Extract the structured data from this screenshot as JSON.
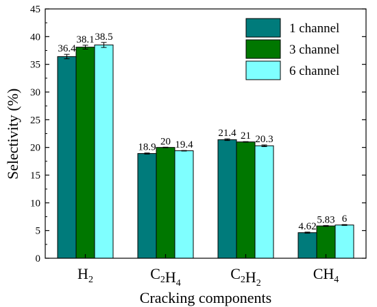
{
  "chart_data": {
    "type": "bar",
    "xlabel": "Cracking components",
    "ylabel": "Selectivity (%)",
    "ylim": [
      0,
      45
    ],
    "yticks": [
      0,
      5,
      10,
      15,
      20,
      25,
      30,
      35,
      40,
      45
    ],
    "categories": [
      {
        "base": "H",
        "sub": "2",
        "parts": [
          [
            "H",
            "2"
          ]
        ]
      },
      {
        "base": "C2H4",
        "parts": [
          [
            "C",
            "2"
          ],
          [
            "H",
            "4"
          ]
        ]
      },
      {
        "base": "C2H2",
        "parts": [
          [
            "C",
            "2"
          ],
          [
            "H",
            "2"
          ]
        ]
      },
      {
        "base": "CH4",
        "parts": [
          [
            "CH",
            "4"
          ]
        ]
      }
    ],
    "series": [
      {
        "name": "1 channel",
        "color": "#007b7b",
        "values": [
          36.4,
          18.9,
          21.4,
          4.62
        ],
        "labels": [
          "36.4",
          "18.9",
          "21.4",
          "4.62"
        ],
        "errors": [
          0.4,
          0.1,
          0.15,
          0.1
        ]
      },
      {
        "name": "3 channel",
        "color": "#007700",
        "values": [
          38.1,
          20,
          21,
          5.83
        ],
        "labels": [
          "38.1",
          "20",
          "21",
          "5.83"
        ],
        "errors": [
          0.35,
          0.05,
          0.05,
          0.08
        ]
      },
      {
        "name": "6 channel",
        "color": "#7fffff",
        "values": [
          38.5,
          19.4,
          20.3,
          6
        ],
        "labels": [
          "38.5",
          "19.4",
          "20.3",
          "6"
        ],
        "errors": [
          0.45,
          0.05,
          0.15,
          0.08
        ]
      }
    ],
    "legend_position": "top-right",
    "grid": false
  }
}
